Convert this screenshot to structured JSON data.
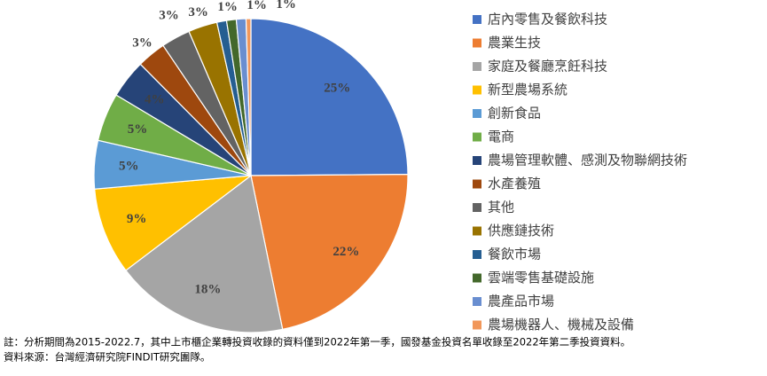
{
  "chart_data": {
    "type": "pie",
    "categories": [
      "店內零售及餐飲科技",
      "農業生技",
      "家庭及餐廳烹飪科技",
      "新型農場系統",
      "創新食品",
      "電商",
      "農場管理軟體、感測及物聯網技術",
      "水產養殖",
      "其他",
      "供應鏈技術",
      "餐飲市場",
      "雲端零售基礎設施",
      "農產品市場",
      "農場機器人、機械及設備"
    ],
    "values": [
      25,
      22,
      18,
      9,
      5,
      5,
      4,
      3,
      3,
      3,
      1,
      1,
      1,
      0.5
    ],
    "value_labels": [
      "25%",
      "22%",
      "18%",
      "9%",
      "5%",
      "5%",
      "4%",
      "3%",
      "3%",
      "3%",
      "1%",
      "1%",
      "1%",
      null
    ],
    "colors": [
      "#4472c4",
      "#ed7d31",
      "#a5a5a5",
      "#ffc000",
      "#5b9bd5",
      "#70ad47",
      "#264478",
      "#9e480e",
      "#636363",
      "#997300",
      "#255e91",
      "#43682b",
      "#698ed0",
      "#f1975a"
    ],
    "legend": "right",
    "annotations": [
      "註：分析期間為2015-2022.7，其中上市櫃企業轉投資收錄的資料僅到2022年第一季，國發基金投資名單收錄至2022年第二季投資資料。",
      "資料來源：台灣經濟研究院FINDIT研究團隊。"
    ]
  }
}
